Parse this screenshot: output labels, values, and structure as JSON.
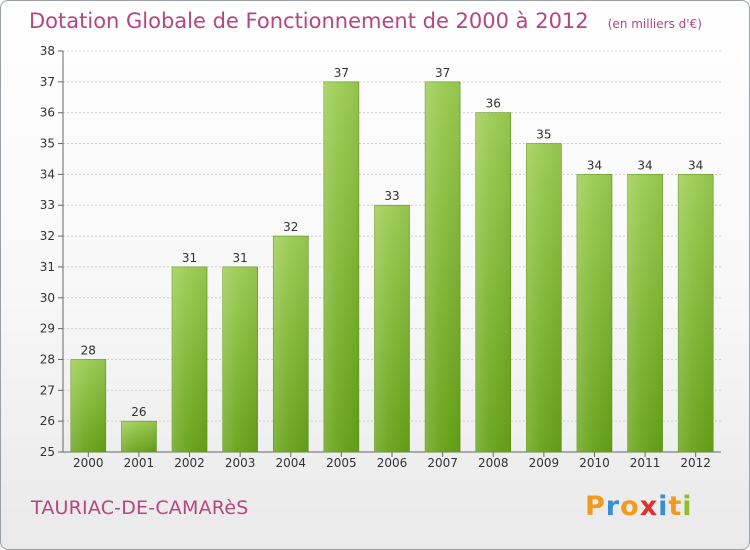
{
  "header": {
    "title": "Dotation Globale de Fonctionnement de 2000 à 2012",
    "unit": "(en milliers d'€)"
  },
  "footer": {
    "commune": "TAURIAC-DE-CAMARèS",
    "brand": {
      "letters": [
        "P",
        "r",
        "o",
        "x",
        "i",
        "t",
        "i"
      ],
      "colors": [
        "#f29a1e",
        "#3a8fd1",
        "#f29a1e",
        "#e0302f",
        "#3a8fd1",
        "#f29a1e",
        "#8dbf2b"
      ]
    }
  },
  "chart_data": {
    "type": "bar",
    "title": "Dotation Globale de Fonctionnement de 2000 à 2012",
    "subtitle": "(en milliers d'€)",
    "categories": [
      "2000",
      "2001",
      "2002",
      "2003",
      "2004",
      "2005",
      "2006",
      "2007",
      "2008",
      "2009",
      "2010",
      "2011",
      "2012"
    ],
    "values": [
      28,
      26,
      31,
      31,
      32,
      37,
      33,
      37,
      36,
      35,
      34,
      34,
      34
    ],
    "ylim": [
      25,
      38
    ],
    "yticks": [
      25,
      26,
      27,
      28,
      29,
      30,
      31,
      32,
      33,
      34,
      35,
      36,
      37,
      38
    ],
    "xlabel": "",
    "ylabel": "",
    "grid": true,
    "bar_color_top": "#9ccc52",
    "bar_color_bottom": "#66a317"
  }
}
